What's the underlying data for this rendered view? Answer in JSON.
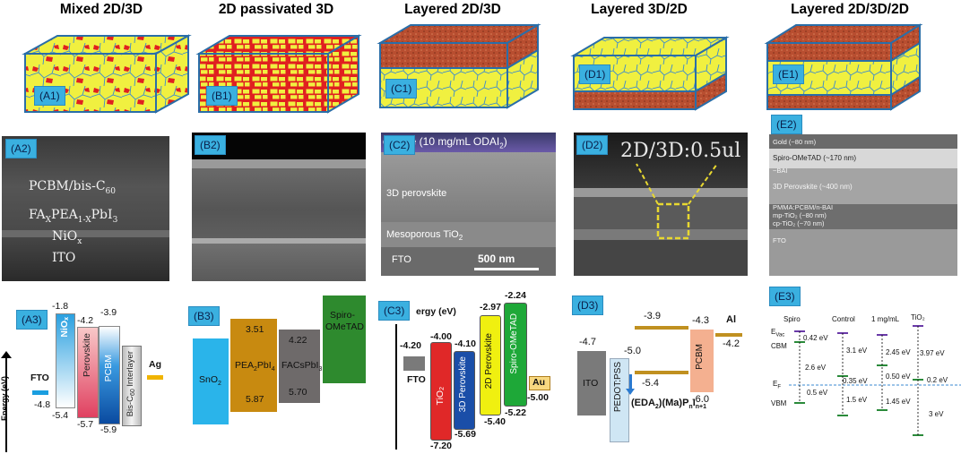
{
  "titles": [
    "Mixed 2D/3D",
    "2D passivated 3D",
    "Layered 2D/3D",
    "Layered 3D/2D",
    "Layered 2D/3D/2D"
  ],
  "panels": {
    "a1": "(A1)",
    "b1": "(B1)",
    "c1": "(C1)",
    "d1": "(D1)",
    "e1": "(E1)",
    "a2": "(A2)",
    "b2": "(B2)",
    "c2": "(C2)",
    "d2": "(D2)",
    "e2": "(E2)",
    "a3": "(A3)",
    "b3": "(B3)",
    "c3": "(C3)",
    "d3": "(D3)",
    "e3": "(E3)"
  },
  "sem_a2": {
    "l1": "PCBM/bis-C",
    "l1_sub": "60",
    "l2": "FA",
    "l2_s1": "X",
    "l2_m": "PEA",
    "l2_s2": "1-X",
    "l2_e": "PbI",
    "l2_s3": "3",
    "l3": "NiO",
    "l3_sub": "x",
    "l4": "ITO"
  },
  "sem_c2": {
    "top": "ovskite (10 mg/mL ODAI",
    "top_sub": "2",
    "top_end": ")",
    "mid": "3D perovskite",
    "meso": "Mesoporous TiO",
    "meso_sub": "2",
    "fto": "FTO",
    "scale": "500 nm"
  },
  "sem_d2": {
    "label": "2D/3D:0.5ul"
  },
  "sem_e2": {
    "l1": "Gold (~80 nm)",
    "l2": "Spiro-OMeTAD (~170 nm)",
    "l3": "~BAI",
    "l4": "3D Perovskite (~400 nm)",
    "l5": "PMMA:PCBM/n-BAI",
    "l6": "mp-TiO₂ (~80 nm)",
    "l7": "cp-TiO₂ (~70 nm)",
    "l8": "FTO"
  },
  "a3": {
    "axis": "Energy (eV)",
    "fto": "FTO",
    "fto_v": "-4.8",
    "nio": "NiO",
    "nio_sub": "x",
    "nio_top": "-1.8",
    "nio_bot": "-5.4",
    "pero": "Perovskite",
    "pero_top": "-4.2",
    "pero_bot": "-5.7",
    "pcbm": "PCBM",
    "pcbm_top": "-3.9",
    "pcbm_bot": "-5.9",
    "bis": "Bis-C",
    "bis_sub": "60",
    "bis_end": " Interlayer",
    "ag": "Ag"
  },
  "b3": {
    "sno2": "SnO",
    "sno2_sub": "2",
    "pea": "PEA",
    "pea_sub1": "2",
    "pea_m": "PbI",
    "pea_sub2": "4",
    "pea_top": "3.51",
    "pea_bot": "5.87",
    "facs": "FACsPbI",
    "facs_sub": "3",
    "facs_top": "4.22",
    "facs_bot": "5.70",
    "spiro1": "Spiro-",
    "spiro2": "OMeTAD"
  },
  "c3": {
    "axis": "ergy (eV)",
    "fto": "FTO",
    "fto_v": "-4.20",
    "tio2": "TiO",
    "tio2_sub": "2",
    "tio2_top": "-4.00",
    "tio2_bot": "-7.20",
    "pero3d": "3D Perovskite",
    "pero3d_top": "-4.10",
    "pero3d_bot": "-5.69",
    "pero2d": "2D Perovskite",
    "pero2d_top": "-2.97",
    "pero2d_bot": "-5.40",
    "spiro": "Spiro-OMeTAD",
    "spiro_top": "-2.24",
    "spiro_bot": "-5.22",
    "au": "Au",
    "au_v": "-5.00"
  },
  "d3": {
    "ito": "ITO",
    "ito_v": "-4.7",
    "pedot": "PEDOT:PSS",
    "pedot_v": "-5.0",
    "top_lvl": "-3.9",
    "low_lvl": "-5.4",
    "pcbm": "PCBM",
    "pcbm_top": "-4.3",
    "pcbm_bot": "-6.0",
    "al": "Al",
    "al_v": "-4.2",
    "formula": "(EDA",
    "f_s1": "2",
    "f_m": ")(Ma)P",
    "f_s2": "n",
    "f_m2": "I",
    "f_s3": "n+1",
    "f_e": ""
  },
  "e3": {
    "cols": [
      "Spiro",
      "Control",
      "1 mg/mL",
      "TiO₂"
    ],
    "evac": "E",
    "evac_sub": "Vac",
    "cbm": "CBM",
    "ef": "E",
    "ef_sub": "F",
    "vbm": "VBM",
    "v1": "0.42 eV",
    "v2": "2.6 eV",
    "v3": "0.5 eV",
    "v4": "3.1 eV",
    "v5": "0.35 eV",
    "v6": "1.5 eV",
    "v7": "2.45 eV",
    "v8": "0.50 eV",
    "v9": "1.45 eV",
    "v10": "3.97 eV",
    "v11": "0.2 eV",
    "v12": "3 eV"
  },
  "colors": {
    "tag": "#3ab0e0",
    "yellow": "#f0f040",
    "red": "#e02020",
    "box_edge": "#2a6ea8",
    "brick": "#c0583a"
  }
}
